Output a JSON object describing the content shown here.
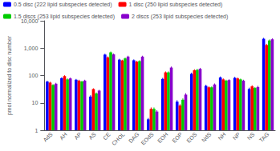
{
  "chart_data": {
    "type": "bar",
    "categories": [
      "AdS",
      "AH",
      "AP",
      "AS",
      "CE",
      "CHOL",
      "DAG",
      "EOdS",
      "EOH",
      "EOP",
      "EOS",
      "NdS",
      "NH",
      "NP",
      "NS",
      "TAG"
    ],
    "series": [
      {
        "name": "0.5 disc (222 lipid subspecies detected)",
        "color": "#0000ff",
        "values": [
          60,
          80,
          70,
          17,
          580,
          380,
          360,
          2.5,
          75,
          11,
          115,
          42,
          85,
          82,
          32,
          2200
        ],
        "errors": [
          4,
          6,
          5,
          2,
          45,
          28,
          28,
          0.3,
          7,
          1.5,
          12,
          4,
          7,
          7,
          4,
          180
        ]
      },
      {
        "name": "1 disc (250 lipid subspecies detected)",
        "color": "#ff0000",
        "values": [
          55,
          95,
          65,
          32,
          460,
          355,
          320,
          6.0,
          130,
          8,
          155,
          37,
          72,
          78,
          40,
          1300
        ],
        "errors": [
          4,
          7,
          5,
          2,
          38,
          22,
          22,
          0.8,
          11,
          1.0,
          14,
          3,
          6,
          6,
          4,
          130
        ]
      },
      {
        "name": "1.5 discs (253 lipid subspecies detected)",
        "color": "#00cc00",
        "values": [
          45,
          72,
          60,
          22,
          700,
          420,
          335,
          6.0,
          130,
          13,
          160,
          37,
          65,
          72,
          35,
          1900
        ],
        "errors": [
          3,
          6,
          4,
          2,
          52,
          32,
          25,
          0.8,
          11,
          1.5,
          14,
          3,
          5,
          5,
          3,
          170
        ]
      },
      {
        "name": "2 discs (253 lipid subspecies detected)",
        "color": "#8800cc",
        "values": [
          50,
          78,
          65,
          28,
          590,
          490,
          490,
          4.8,
          195,
          20,
          175,
          47,
          68,
          65,
          38,
          2100
        ],
        "errors": [
          4,
          6,
          5,
          2,
          48,
          38,
          38,
          0.6,
          17,
          2.5,
          15,
          4,
          5,
          5,
          4,
          180
        ]
      }
    ],
    "ylabel": "pmol normalized to disc number",
    "log": "y",
    "ylim": [
      1,
      10000
    ],
    "yticks": [
      1,
      10,
      100,
      {
        "value": 1000,
        "label": "1,000"
      },
      {
        "value": 10000,
        "label": "10,000"
      }
    ],
    "grid": false,
    "legend": "upper left"
  }
}
